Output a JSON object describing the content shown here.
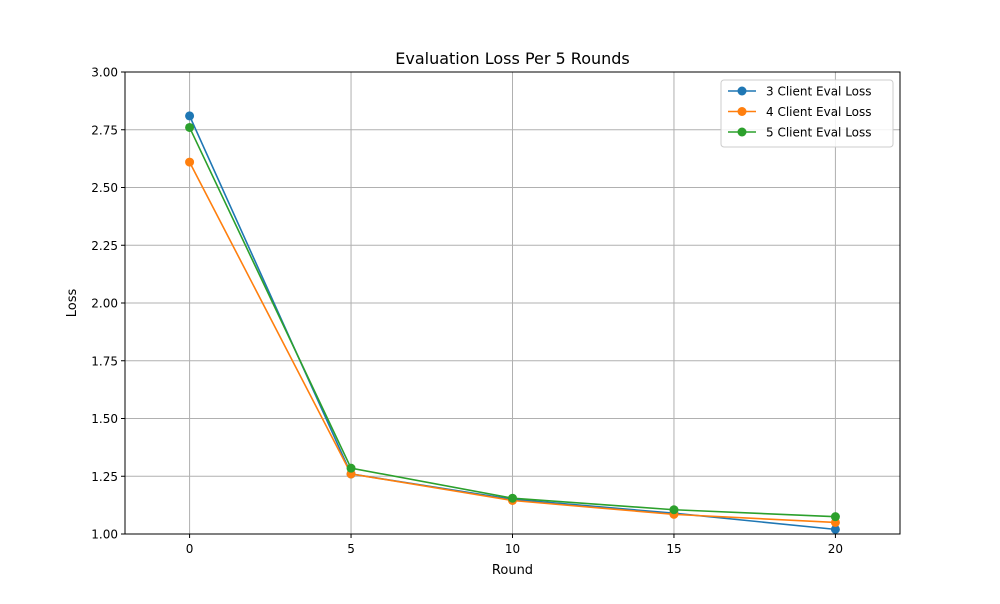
{
  "chart_data": {
    "type": "line",
    "title": "Evaluation Loss Per 5 Rounds",
    "xlabel": "Round",
    "ylabel": "Loss",
    "x": [
      0,
      5,
      10,
      15,
      20
    ],
    "xlim": [
      -2,
      22
    ],
    "ylim": [
      1.0,
      3.0
    ],
    "xticks": [
      0,
      5,
      10,
      15,
      20
    ],
    "yticks": [
      1.0,
      1.25,
      1.5,
      1.75,
      2.0,
      2.25,
      2.5,
      2.75,
      3.0
    ],
    "ytick_labels": [
      "1.00",
      "1.25",
      "1.50",
      "1.75",
      "2.00",
      "2.25",
      "2.50",
      "2.75",
      "3.00"
    ],
    "grid": true,
    "legend_position": "top-right",
    "series": [
      {
        "name": "3 Client Eval Loss",
        "color": "#1f77b4",
        "values": [
          2.81,
          1.26,
          1.15,
          1.09,
          1.02
        ]
      },
      {
        "name": "4 Client Eval Loss",
        "color": "#ff7f0e",
        "values": [
          2.61,
          1.26,
          1.145,
          1.085,
          1.05
        ]
      },
      {
        "name": "5 Client Eval Loss",
        "color": "#2ca02c",
        "values": [
          2.76,
          1.285,
          1.155,
          1.105,
          1.075
        ]
      }
    ]
  }
}
